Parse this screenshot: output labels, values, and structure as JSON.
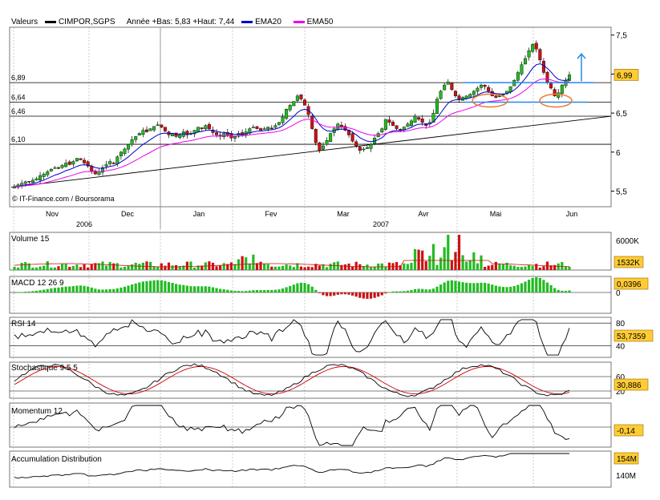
{
  "header": {
    "label": "Valeurs",
    "symbol": "CIMPOR,SGPS",
    "range_text": "Année +Bas: 5,83 +Haut: 7,44",
    "ema20_label": "EMA20",
    "ema50_label": "EMA50"
  },
  "colors": {
    "up": "#22bb22",
    "down": "#cc1111",
    "ema20": "#0000cc",
    "ema50": "#ee00ee",
    "annotation": "#2288ee",
    "circle": "#ee7733",
    "value_box": "#ffcc33",
    "grid": "#000000",
    "osc_line": "#000000",
    "stoch_signal": "#cc0000"
  },
  "source": "© IT-Finance.com / Boursorama",
  "chart_data": [
    {
      "type": "candlestick",
      "title": "CIMPOR,SGPS",
      "ylim": [
        5.3,
        7.6
      ],
      "y_ticks": [
        "7,5",
        "7",
        "6,5",
        "6",
        "5,5"
      ],
      "y_tick_values": [
        7.5,
        7.0,
        6.5,
        6.0,
        5.5
      ],
      "x_ticks": [
        "Nov",
        "Dec",
        "Jan",
        "Fev",
        "Mar",
        "Avr",
        "Mai",
        "Jun"
      ],
      "years": [
        "2006",
        "2007"
      ],
      "horizontal_levels": [
        {
          "label": "6,89",
          "value": 6.89
        },
        {
          "label": "6,64",
          "value": 6.64
        },
        {
          "label": "6,46",
          "value": 6.46
        },
        {
          "label": "6,10",
          "value": 6.1
        }
      ],
      "last_value": "6,99",
      "close": [
        5.56,
        5.58,
        5.6,
        5.62,
        5.62,
        5.64,
        5.66,
        5.7,
        5.72,
        5.75,
        5.78,
        5.8,
        5.79,
        5.83,
        5.86,
        5.84,
        5.88,
        5.92,
        5.9,
        5.86,
        5.82,
        5.76,
        5.72,
        5.75,
        5.8,
        5.84,
        5.88,
        5.86,
        5.94,
        6.0,
        6.04,
        6.1,
        6.16,
        6.2,
        6.24,
        6.28,
        6.26,
        6.3,
        6.33,
        6.35,
        6.32,
        6.27,
        6.22,
        6.24,
        6.2,
        6.22,
        6.26,
        6.22,
        6.24,
        6.28,
        6.32,
        6.3,
        6.34,
        6.3,
        6.25,
        6.22,
        6.2,
        6.24,
        6.22,
        6.18,
        6.2,
        6.24,
        6.22,
        6.26,
        6.3,
        6.32,
        6.3,
        6.28,
        6.3,
        6.32,
        6.3,
        6.34,
        6.38,
        6.45,
        6.55,
        6.6,
        6.65,
        6.72,
        6.68,
        6.6,
        6.48,
        6.3,
        6.12,
        6.02,
        6.08,
        6.15,
        6.24,
        6.3,
        6.36,
        6.32,
        6.28,
        6.22,
        6.14,
        6.08,
        6.02,
        6.04,
        6.06,
        6.1,
        6.18,
        6.24,
        6.3,
        6.42,
        6.38,
        6.34,
        6.3,
        6.28,
        6.32,
        6.36,
        6.4,
        6.46,
        6.42,
        6.38,
        6.34,
        6.38,
        6.5,
        6.68,
        6.78,
        6.86,
        6.9,
        6.8,
        6.72,
        6.68,
        6.7,
        6.72,
        6.74,
        6.78,
        6.82,
        6.86,
        6.84,
        6.78,
        6.72,
        6.7,
        6.72,
        6.74,
        6.78,
        6.84,
        6.92,
        7.02,
        7.12,
        7.2,
        7.3,
        7.38,
        7.32,
        7.18,
        7.02,
        6.9,
        6.82,
        6.72,
        6.76,
        6.86,
        6.92,
        6.99
      ],
      "ema20_label": "EMA20",
      "ema50_label": "EMA50"
    },
    {
      "type": "bar",
      "title": "Volume 15",
      "y_ticks": [
        "6000K"
      ],
      "last_value": "1532K"
    },
    {
      "type": "bar",
      "title": "MACD 12 26 9",
      "y_ticks": [
        "0"
      ],
      "last_value": "0,0396"
    },
    {
      "type": "line",
      "title": "RSI 14",
      "ylim": [
        20,
        90
      ],
      "y_ticks": [
        "80",
        "40"
      ],
      "y_tick_values": [
        80,
        40
      ],
      "last_value": "53,7359"
    },
    {
      "type": "line",
      "title": "Stochastique 9 5 5",
      "ylim": [
        0,
        100
      ],
      "y_ticks": [
        "60",
        "20"
      ],
      "y_tick_values": [
        60,
        20
      ],
      "last_value": "30,886"
    },
    {
      "type": "line",
      "title": "Momentum 12",
      "last_value": "-0,14"
    },
    {
      "type": "line",
      "title": "Accumulation Distribution",
      "y_ticks": [
        "140M"
      ],
      "last_value": "154M"
    }
  ]
}
